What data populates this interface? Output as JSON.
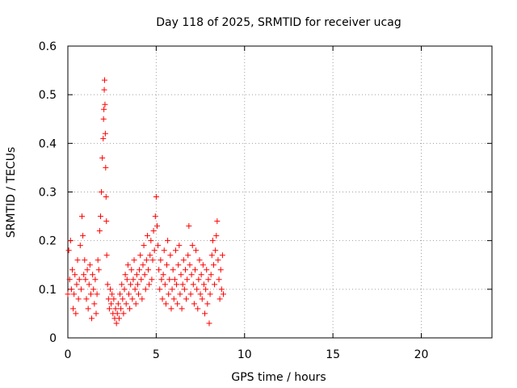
{
  "chart_data": {
    "type": "scatter",
    "title": "Day 118 of 2025, SRMTID for receiver ucag",
    "xlabel": "GPS time / hours",
    "ylabel": "SRMTID / TECUs",
    "xlim": [
      0,
      24
    ],
    "ylim": [
      0,
      0.6
    ],
    "xticks": [
      0,
      5,
      10,
      15,
      20
    ],
    "yticks": [
      0,
      0.1,
      0.2,
      0.3,
      0.4,
      0.5,
      0.6
    ],
    "xtick_labels": [
      "0",
      "5",
      "10",
      "15",
      "20"
    ],
    "ytick_labels": [
      "0",
      "0.1",
      "0.2",
      "0.3",
      "0.4",
      "0.5",
      "0.6"
    ],
    "grid": true,
    "legend": "none",
    "marker": "plus",
    "color": "#ff0000",
    "series": [
      {
        "x": [
          0.0,
          0.05,
          0.1,
          0.15,
          0.2,
          0.25,
          0.3,
          0.35,
          0.4,
          0.45,
          0.5,
          0.55,
          0.6,
          0.65,
          0.7,
          0.75,
          0.8,
          0.85,
          0.9,
          0.95,
          1.0,
          1.05,
          1.1,
          1.15,
          1.2,
          1.25,
          1.3,
          1.35,
          1.4,
          1.45,
          1.5,
          1.55,
          1.6,
          1.65,
          1.7,
          1.75,
          1.8,
          1.85,
          1.9,
          1.95,
          2.0,
          2.02,
          2.04,
          2.06,
          2.08,
          2.1,
          2.12,
          2.14,
          2.16,
          2.18,
          2.2,
          2.25,
          2.3,
          2.35,
          2.4,
          2.45,
          2.5,
          2.55,
          2.6,
          2.65,
          2.7,
          2.75,
          2.8,
          2.85,
          2.9,
          2.95,
          3.0,
          3.05,
          3.1,
          3.15,
          3.2,
          3.25,
          3.3,
          3.35,
          3.4,
          3.45,
          3.5,
          3.55,
          3.6,
          3.65,
          3.7,
          3.75,
          3.8,
          3.85,
          3.9,
          3.95,
          4.0,
          4.05,
          4.1,
          4.15,
          4.2,
          4.25,
          4.3,
          4.35,
          4.4,
          4.45,
          4.5,
          4.55,
          4.6,
          4.65,
          4.7,
          4.75,
          4.8,
          4.85,
          4.9,
          4.95,
          5.0,
          5.05,
          5.1,
          5.15,
          5.2,
          5.25,
          5.3,
          5.35,
          5.4,
          5.45,
          5.5,
          5.55,
          5.6,
          5.65,
          5.7,
          5.75,
          5.8,
          5.85,
          5.9,
          5.95,
          6.0,
          6.05,
          6.1,
          6.15,
          6.2,
          6.25,
          6.3,
          6.35,
          6.4,
          6.45,
          6.5,
          6.55,
          6.6,
          6.65,
          6.7,
          6.75,
          6.8,
          6.85,
          6.9,
          6.95,
          7.0,
          7.05,
          7.1,
          7.15,
          7.2,
          7.25,
          7.3,
          7.35,
          7.4,
          7.45,
          7.5,
          7.55,
          7.6,
          7.65,
          7.7,
          7.75,
          7.8,
          7.85,
          7.9,
          7.95,
          8.0,
          8.05,
          8.1,
          8.15,
          8.2,
          8.25,
          8.3,
          8.35,
          8.4,
          8.45,
          8.5,
          8.55,
          8.6,
          8.65,
          8.7,
          8.75,
          8.8
        ],
        "y": [
          0.09,
          0.18,
          0.12,
          0.2,
          0.1,
          0.14,
          0.06,
          0.09,
          0.13,
          0.05,
          0.11,
          0.16,
          0.08,
          0.12,
          0.19,
          0.1,
          0.25,
          0.21,
          0.13,
          0.16,
          0.12,
          0.08,
          0.14,
          0.06,
          0.11,
          0.15,
          0.09,
          0.04,
          0.13,
          0.1,
          0.07,
          0.12,
          0.05,
          0.09,
          0.16,
          0.14,
          0.22,
          0.25,
          0.3,
          0.37,
          0.41,
          0.45,
          0.47,
          0.51,
          0.53,
          0.48,
          0.42,
          0.35,
          0.29,
          0.24,
          0.17,
          0.11,
          0.08,
          0.06,
          0.1,
          0.07,
          0.09,
          0.05,
          0.08,
          0.04,
          0.06,
          0.03,
          0.05,
          0.07,
          0.04,
          0.09,
          0.06,
          0.11,
          0.08,
          0.05,
          0.1,
          0.13,
          0.07,
          0.12,
          0.15,
          0.09,
          0.06,
          0.11,
          0.14,
          0.08,
          0.12,
          0.16,
          0.1,
          0.07,
          0.13,
          0.11,
          0.09,
          0.14,
          0.17,
          0.12,
          0.08,
          0.15,
          0.19,
          0.13,
          0.1,
          0.16,
          0.21,
          0.14,
          0.11,
          0.17,
          0.2,
          0.12,
          0.16,
          0.22,
          0.18,
          0.25,
          0.29,
          0.23,
          0.19,
          0.14,
          0.1,
          0.16,
          0.12,
          0.08,
          0.13,
          0.18,
          0.11,
          0.07,
          0.15,
          0.2,
          0.09,
          0.12,
          0.17,
          0.06,
          0.1,
          0.14,
          0.08,
          0.12,
          0.18,
          0.11,
          0.07,
          0.15,
          0.19,
          0.09,
          0.13,
          0.06,
          0.11,
          0.16,
          0.1,
          0.14,
          0.08,
          0.12,
          0.17,
          0.23,
          0.15,
          0.09,
          0.13,
          0.19,
          0.11,
          0.07,
          0.14,
          0.18,
          0.1,
          0.06,
          0.12,
          0.16,
          0.09,
          0.13,
          0.08,
          0.15,
          0.11,
          0.05,
          0.1,
          0.14,
          0.07,
          0.12,
          0.03,
          0.09,
          0.13,
          0.17,
          0.2,
          0.15,
          0.11,
          0.18,
          0.21,
          0.24,
          0.16,
          0.12,
          0.08,
          0.14,
          0.1,
          0.17,
          0.09
        ]
      }
    ]
  }
}
